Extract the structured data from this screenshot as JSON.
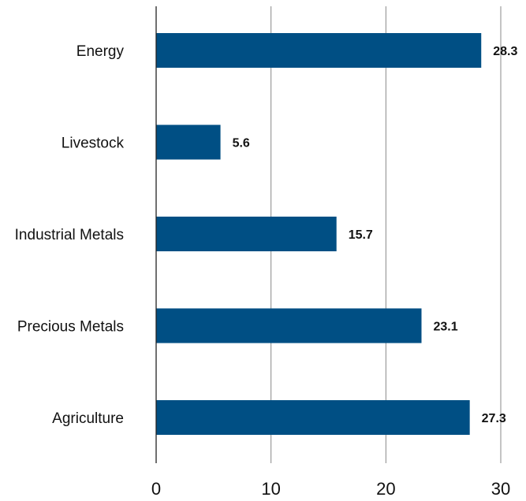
{
  "chart_data": {
    "type": "bar",
    "orientation": "horizontal",
    "categories": [
      "Energy",
      "Livestock",
      "Industrial Metals",
      "Precious Metals",
      "Agriculture"
    ],
    "values": [
      28.3,
      5.6,
      15.7,
      23.1,
      27.3
    ],
    "value_labels": [
      "28.3",
      "5.6",
      "15.7",
      "23.1",
      "27.3"
    ],
    "xlim": [
      0,
      30
    ],
    "xticks": [
      0,
      10,
      20,
      30
    ],
    "xtick_labels": [
      "0",
      "10",
      "20",
      "30"
    ],
    "grid": "vertical",
    "bar_color": "#004f84",
    "title": "",
    "xlabel": "",
    "ylabel": ""
  }
}
